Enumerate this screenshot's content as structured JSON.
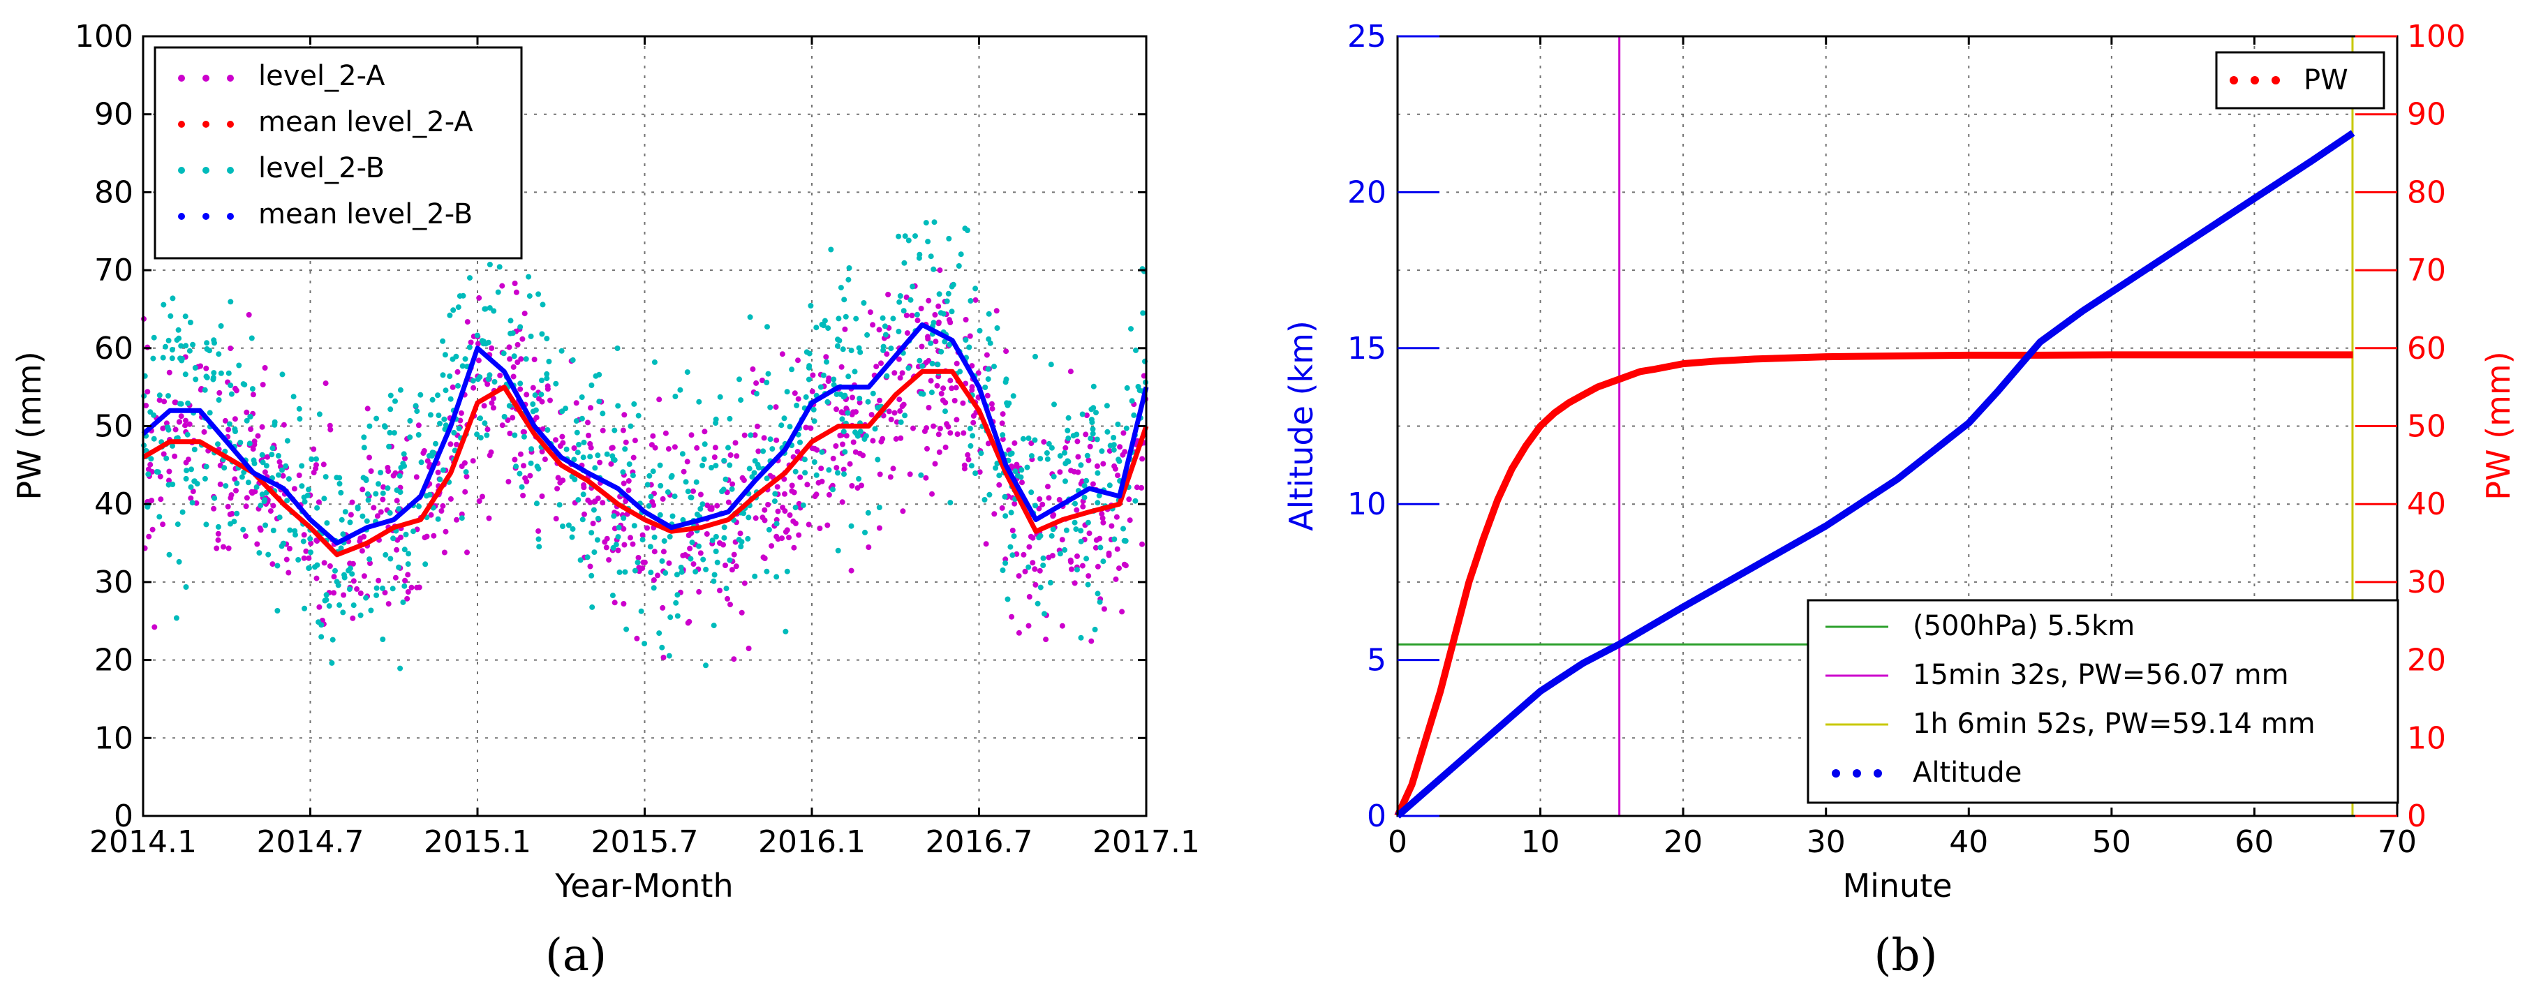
{
  "chart_data": [
    {
      "id": "a",
      "panel_label": "(a)",
      "type": "scatter",
      "title": "",
      "xlabel": "Year-Month",
      "ylabel": "PW (mm)",
      "xlim": [
        2014.0,
        2017.0
      ],
      "ylim": [
        0,
        100
      ],
      "x_ticks": [
        {
          "v": 2014.0,
          "label": "2014.1"
        },
        {
          "v": 2014.5,
          "label": "2014.7"
        },
        {
          "v": 2015.0,
          "label": "2015.1"
        },
        {
          "v": 2015.5,
          "label": "2015.7"
        },
        {
          "v": 2016.0,
          "label": "2016.1"
        },
        {
          "v": 2016.5,
          "label": "2016.7"
        },
        {
          "v": 2017.0,
          "label": "2017.1"
        }
      ],
      "y_ticks": [
        0,
        10,
        20,
        30,
        40,
        50,
        60,
        70,
        80,
        90,
        100
      ],
      "grid": true,
      "legend_position": "top-left",
      "series": [
        {
          "name": "level_2-A",
          "style": "scatter",
          "color": "#cc00cc"
        },
        {
          "name": "mean level_2-A",
          "style": "line",
          "color": "#ff0000",
          "x": [
            2014.0,
            2014.08,
            2014.17,
            2014.25,
            2014.33,
            2014.42,
            2014.5,
            2014.58,
            2014.67,
            2014.75,
            2014.83,
            2014.92,
            2015.0,
            2015.08,
            2015.17,
            2015.25,
            2015.33,
            2015.42,
            2015.5,
            2015.58,
            2015.67,
            2015.75,
            2015.83,
            2015.92,
            2016.0,
            2016.08,
            2016.17,
            2016.25,
            2016.33,
            2016.42,
            2016.5,
            2016.58,
            2016.67,
            2016.75,
            2016.83,
            2016.92,
            2017.0
          ],
          "y": [
            46,
            48,
            48,
            46,
            44,
            40,
            37,
            33.5,
            35,
            37,
            38,
            44,
            53,
            55,
            49,
            45,
            43,
            40,
            38,
            36.5,
            37,
            38,
            41,
            44,
            48,
            50,
            50,
            54,
            57,
            57,
            52,
            44,
            36.5,
            38,
            39,
            40,
            50
          ]
        },
        {
          "name": "level_2-B",
          "style": "scatter",
          "color": "#00bbbb"
        },
        {
          "name": "mean level_2-B",
          "style": "line",
          "color": "#0000ff",
          "x": [
            2014.0,
            2014.08,
            2014.17,
            2014.25,
            2014.33,
            2014.42,
            2014.5,
            2014.58,
            2014.67,
            2014.75,
            2014.83,
            2014.92,
            2015.0,
            2015.08,
            2015.17,
            2015.25,
            2015.33,
            2015.42,
            2015.5,
            2015.58,
            2015.67,
            2015.75,
            2015.83,
            2015.92,
            2016.0,
            2016.08,
            2016.17,
            2016.25,
            2016.33,
            2016.42,
            2016.5,
            2016.58,
            2016.67,
            2016.75,
            2016.83,
            2016.92,
            2017.0
          ],
          "y": [
            49,
            52,
            52,
            48,
            44,
            42,
            38,
            35,
            37,
            38,
            41,
            50,
            60,
            57,
            50,
            46,
            44,
            42,
            39,
            37,
            38,
            39,
            43,
            47,
            53,
            55,
            55,
            59,
            63,
            61,
            55,
            45,
            38,
            40,
            42,
            41,
            55
          ]
        }
      ]
    },
    {
      "id": "b",
      "panel_label": "(b)",
      "type": "line",
      "title": "",
      "xlabel": "Minute",
      "ylabel": "Altitude (km)",
      "y2label": "PW (mm)",
      "xlim": [
        0,
        70
      ],
      "ylim": [
        0,
        25
      ],
      "y2lim": [
        0,
        100
      ],
      "x_ticks": [
        0,
        10,
        20,
        30,
        40,
        50,
        60,
        70
      ],
      "y_ticks": [
        0,
        5,
        10,
        15,
        20,
        25
      ],
      "y2_ticks": [
        0,
        10,
        20,
        30,
        40,
        50,
        60,
        70,
        80,
        90,
        100
      ],
      "grid": true,
      "legend_top_position": "top-right",
      "legend_bottom_position": "lower-right",
      "series": [
        {
          "name": "PW",
          "axis": "right",
          "color": "#ff0000",
          "x": [
            0,
            1,
            2,
            3,
            4,
            5,
            6,
            7,
            8,
            9,
            10,
            11,
            12,
            13,
            14,
            15.5,
            17,
            18,
            20,
            22,
            25,
            30,
            35,
            40,
            45,
            50,
            55,
            60,
            66.9
          ],
          "y": [
            0,
            4,
            10,
            16,
            23,
            30,
            35.5,
            40.5,
            44.5,
            47.5,
            50,
            51.7,
            53,
            54,
            55,
            56,
            57,
            57.3,
            58,
            58.3,
            58.6,
            58.9,
            59,
            59.1,
            59.1,
            59.14,
            59.14,
            59.14,
            59.14
          ]
        },
        {
          "name": "Altitude",
          "axis": "left",
          "color": "#0000ee",
          "x": [
            0,
            3,
            5,
            8,
            10,
            13,
            15.5,
            20,
            25,
            30,
            35,
            40,
            42,
            45,
            48,
            52,
            56,
            60,
            64,
            66.9
          ],
          "y": [
            0,
            1.2,
            2.0,
            3.2,
            4.0,
            4.9,
            5.5,
            6.7,
            8.0,
            9.3,
            10.8,
            12.6,
            13.6,
            15.2,
            16.2,
            17.4,
            18.6,
            19.8,
            21.0,
            21.9
          ]
        },
        {
          "name": "(500hPa) 5.5km",
          "type": "hline",
          "axis": "left",
          "value": 5.5,
          "color": "#2ca02c"
        },
        {
          "name": "15min 32s, PW=56.07 mm",
          "type": "vline",
          "value": 15.53,
          "color": "#cc00cc"
        },
        {
          "name": "1h 6min 52s, PW=59.14 mm",
          "type": "vline",
          "value": 66.87,
          "color": "#c8c800"
        }
      ]
    }
  ]
}
